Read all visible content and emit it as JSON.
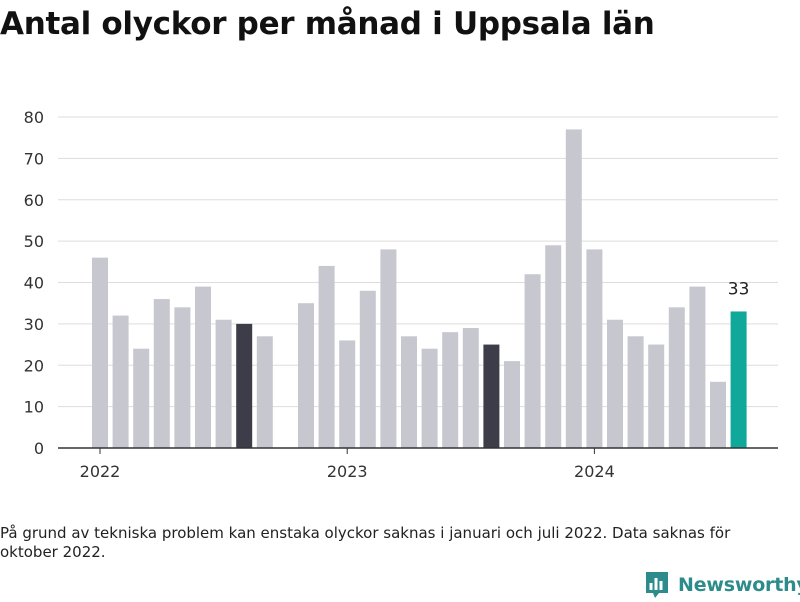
{
  "title": "Antal olyckor per månad i Uppsala län",
  "footnote": "På grund av tekniska problem kan enstaka olyckor saknas i januari och juli 2022. Data saknas för oktober 2022.",
  "brand": {
    "name": "Newsworthy",
    "icon": "newsworthy-logo-icon",
    "color": "#2e8b8b"
  },
  "colors": {
    "bar": "#c7c7cf",
    "highlight_dark": "#3d3d4a",
    "highlight_teal": "#0fa89a",
    "grid": "#dddddd",
    "axis": "#333333"
  },
  "chart_data": {
    "type": "bar",
    "title": "Antal olyckor per månad i Uppsala län",
    "xlabel": "",
    "ylabel": "",
    "ylim": [
      0,
      80
    ],
    "yticks": [
      0,
      10,
      20,
      30,
      40,
      50,
      60,
      70,
      80
    ],
    "grid": true,
    "legend": "none",
    "x_tick_labels": [
      {
        "label": "2022",
        "at": "2022-01"
      },
      {
        "label": "2023",
        "at": "2023-01"
      },
      {
        "label": "2024",
        "at": "2024-01"
      }
    ],
    "categories": [
      "2022-01",
      "2022-02",
      "2022-03",
      "2022-04",
      "2022-05",
      "2022-06",
      "2022-07",
      "2022-08",
      "2022-09",
      "2022-10",
      "2022-11",
      "2022-12",
      "2023-01",
      "2023-02",
      "2023-03",
      "2023-04",
      "2023-05",
      "2023-06",
      "2023-07",
      "2023-08",
      "2023-09",
      "2023-10",
      "2023-11",
      "2023-12",
      "2024-01",
      "2024-02",
      "2024-03",
      "2024-04",
      "2024-05",
      "2024-06",
      "2024-07",
      "2024-08"
    ],
    "values": [
      46,
      32,
      24,
      36,
      34,
      39,
      31,
      30,
      27,
      null,
      35,
      44,
      26,
      38,
      48,
      27,
      24,
      28,
      29,
      25,
      21,
      42,
      49,
      77,
      48,
      31,
      27,
      25,
      34,
      39,
      16,
      33
    ],
    "bar_colors": [
      "#c7c7cf",
      "#c7c7cf",
      "#c7c7cf",
      "#c7c7cf",
      "#c7c7cf",
      "#c7c7cf",
      "#c7c7cf",
      "#3d3d4a",
      "#c7c7cf",
      "#c7c7cf",
      "#c7c7cf",
      "#c7c7cf",
      "#c7c7cf",
      "#c7c7cf",
      "#c7c7cf",
      "#c7c7cf",
      "#c7c7cf",
      "#c7c7cf",
      "#c7c7cf",
      "#3d3d4a",
      "#c7c7cf",
      "#c7c7cf",
      "#c7c7cf",
      "#c7c7cf",
      "#c7c7cf",
      "#c7c7cf",
      "#c7c7cf",
      "#c7c7cf",
      "#c7c7cf",
      "#c7c7cf",
      "#c7c7cf",
      "#0fa89a"
    ],
    "annotations": [
      {
        "category": "2024-08",
        "text": "33"
      }
    ]
  }
}
